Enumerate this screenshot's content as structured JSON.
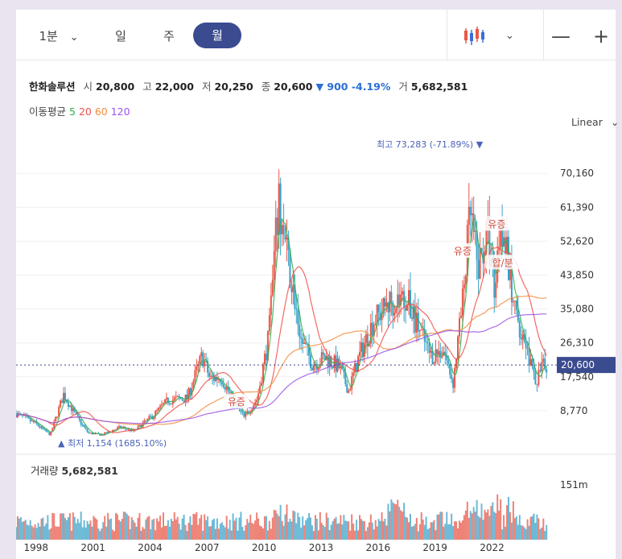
{
  "toolbar": {
    "interval": "1분",
    "tabs": [
      "일",
      "주",
      "월"
    ],
    "active_tab": "월"
  },
  "stock": {
    "name": "한화솔루션",
    "open_label": "시",
    "open": "20,800",
    "high_label": "고",
    "high": "22,000",
    "low_label": "저",
    "low": "20,250",
    "close_label": "종",
    "close": "20,600",
    "change": "▼ 900 -4.19%",
    "volume_label": "거",
    "volume": "5,682,581"
  },
  "ma": {
    "label": "이동평균",
    "items": [
      {
        "period": "5",
        "color": "#2fae4e"
      },
      {
        "period": "20",
        "color": "#f0504a"
      },
      {
        "period": "60",
        "color": "#f28c3c"
      },
      {
        "period": "120",
        "color": "#9b55e6"
      }
    ]
  },
  "scale_mode": "Linear",
  "colors": {
    "up": "#e8584a",
    "down": "#3aa2c8",
    "accent": "#3b4b8f",
    "price_tag": "#3b4b8f"
  },
  "chart_data": {
    "type": "candlestick",
    "x_tick_labels": [
      "1998",
      "2001",
      "2004",
      "2007",
      "2010",
      "2013",
      "2016",
      "2019",
      "2022"
    ],
    "y_ticks": [
      70160,
      61390,
      52620,
      43850,
      35080,
      26310,
      17540,
      8770
    ],
    "y_tick_labels": [
      "70,160",
      "61,390",
      "52,620",
      "43,850",
      "35,080",
      "26,310",
      "17,540",
      "8,770"
    ],
    "current_price": 20600,
    "current_price_label": "20,600",
    "max_annotation": "최고 73,283 (-71.89%)",
    "min_annotation": "최저 1,154 (1685.10%)",
    "events": [
      {
        "label": "유증",
        "year": 2008.6,
        "price": 11000
      },
      {
        "label": "유증",
        "year": 2020.5,
        "price": 50000
      },
      {
        "label": "유증",
        "year": 2022.3,
        "price": 57000
      },
      {
        "label": "합/분",
        "year": 2022.6,
        "price": 47000
      }
    ],
    "price_path": [
      [
        1997.0,
        8000
      ],
      [
        1998.0,
        5500
      ],
      [
        1998.8,
        2500
      ],
      [
        1999.5,
        13000
      ],
      [
        2000.2,
        7000
      ],
      [
        2000.8,
        3000
      ],
      [
        2001.5,
        2500
      ],
      [
        2002.5,
        4500
      ],
      [
        2003.2,
        3500
      ],
      [
        2004.2,
        7500
      ],
      [
        2005.0,
        11500
      ],
      [
        2006.0,
        12000
      ],
      [
        2006.8,
        23000
      ],
      [
        2007.2,
        17000
      ],
      [
        2007.8,
        17500
      ],
      [
        2008.5,
        10500
      ],
      [
        2009.0,
        7000
      ],
      [
        2009.7,
        12000
      ],
      [
        2010.3,
        28000
      ],
      [
        2010.8,
        62000
      ],
      [
        2011.5,
        42000
      ],
      [
        2012.0,
        27000
      ],
      [
        2012.6,
        21000
      ],
      [
        2013.3,
        22500
      ],
      [
        2014.0,
        20000
      ],
      [
        2014.5,
        14000
      ],
      [
        2015.0,
        22000
      ],
      [
        2015.8,
        32000
      ],
      [
        2016.7,
        37000
      ],
      [
        2017.5,
        38000
      ],
      [
        2018.2,
        30000
      ],
      [
        2018.8,
        23000
      ],
      [
        2019.5,
        24500
      ],
      [
        2020.0,
        16000
      ],
      [
        2020.5,
        37000
      ],
      [
        2020.9,
        60000
      ],
      [
        2021.3,
        45000
      ],
      [
        2021.8,
        55000
      ],
      [
        2022.2,
        40000
      ],
      [
        2022.5,
        60000
      ],
      [
        2022.8,
        50000
      ],
      [
        2023.2,
        35000
      ],
      [
        2023.8,
        27000
      ],
      [
        2024.3,
        16000
      ],
      [
        2024.8,
        20600
      ]
    ],
    "volume_max_label": "151m",
    "volume_label": "거래량",
    "volume_value": "5,682,581"
  }
}
